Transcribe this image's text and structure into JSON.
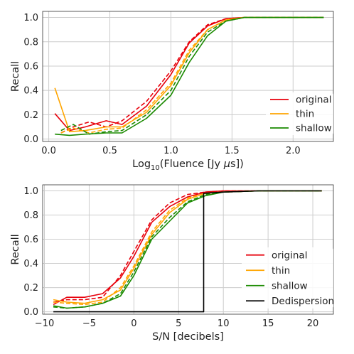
{
  "chart_data": [
    {
      "type": "line",
      "xlabel": "Log10(Fluence [Jy μs])",
      "xlabel_parts": {
        "pre": "Log",
        "sub": "10",
        "post": "(Fluence [Jy ",
        "mu": "μ",
        "post2": "s])"
      },
      "ylabel": "Recall",
      "xlim": [
        -0.05,
        2.33
      ],
      "ylim": [
        -0.02,
        1.05
      ],
      "xticks": [
        0.0,
        0.5,
        1.0,
        1.5,
        2.0
      ],
      "xtick_labels": [
        "0.0",
        "0.5",
        "1.0",
        "1.5",
        "2.0"
      ],
      "yticks": [
        0.0,
        0.2,
        0.4,
        0.6,
        0.8,
        1.0
      ],
      "ytick_labels": [
        "0.0",
        "0.2",
        "0.4",
        "0.6",
        "0.8",
        "1.0"
      ],
      "grid": true,
      "legend": {
        "position": "right",
        "entries": [
          "original",
          "thin",
          "shallow"
        ]
      },
      "series": [
        {
          "name": "original",
          "color": "#e8000b",
          "style": "solid",
          "x": [
            0.05,
            0.17,
            0.3,
            0.47,
            0.6,
            0.8,
            1.0,
            1.15,
            1.3,
            1.45,
            1.6,
            2.25
          ],
          "y": [
            0.21,
            0.07,
            0.1,
            0.15,
            0.12,
            0.27,
            0.53,
            0.79,
            0.93,
            0.99,
            1.0,
            1.0
          ]
        },
        {
          "name": "",
          "color": "#e8000b",
          "style": "dashed",
          "x": [
            0.1,
            0.2,
            0.33,
            0.47,
            0.6,
            0.8,
            1.0,
            1.15,
            1.3,
            1.45,
            1.6,
            2.25
          ],
          "y": [
            0.05,
            0.1,
            0.14,
            0.1,
            0.15,
            0.31,
            0.56,
            0.8,
            0.94,
            0.99,
            1.0,
            1.0
          ]
        },
        {
          "name": "thin",
          "color": "#ffa500",
          "style": "solid",
          "x": [
            0.05,
            0.17,
            0.3,
            0.47,
            0.6,
            0.8,
            1.0,
            1.15,
            1.3,
            1.45,
            1.6,
            2.25
          ],
          "y": [
            0.42,
            0.06,
            0.07,
            0.1,
            0.1,
            0.22,
            0.44,
            0.71,
            0.9,
            0.98,
            1.0,
            1.0
          ]
        },
        {
          "name": "",
          "color": "#ffa500",
          "style": "dashed",
          "x": [
            0.1,
            0.2,
            0.33,
            0.47,
            0.6,
            0.8,
            1.0,
            1.15,
            1.3,
            1.45,
            1.6,
            2.25
          ],
          "y": [
            0.05,
            0.09,
            0.05,
            0.08,
            0.09,
            0.24,
            0.46,
            0.73,
            0.9,
            0.98,
            1.0,
            1.0
          ]
        },
        {
          "name": "shallow",
          "color": "#1a8a00",
          "style": "solid",
          "x": [
            0.05,
            0.17,
            0.3,
            0.47,
            0.6,
            0.8,
            1.0,
            1.15,
            1.3,
            1.45,
            1.6,
            2.25
          ],
          "y": [
            0.04,
            0.03,
            0.04,
            0.05,
            0.05,
            0.17,
            0.36,
            0.63,
            0.85,
            0.97,
            1.0,
            1.0
          ]
        },
        {
          "name": "",
          "color": "#1a8a00",
          "style": "dashed",
          "x": [
            0.1,
            0.2,
            0.33,
            0.47,
            0.6,
            0.8,
            1.0,
            1.15,
            1.3,
            1.45,
            1.6,
            2.25
          ],
          "y": [
            0.07,
            0.12,
            0.04,
            0.06,
            0.07,
            0.2,
            0.4,
            0.68,
            0.88,
            0.97,
            1.0,
            1.0
          ]
        }
      ]
    },
    {
      "type": "line",
      "xlabel": "S/N [decibels]",
      "ylabel": "Recall",
      "xlim": [
        -10.2,
        22.3
      ],
      "ylim": [
        -0.02,
        1.05
      ],
      "xticks": [
        -10,
        -5,
        0,
        5,
        10,
        15,
        20
      ],
      "xtick_labels": [
        "−10",
        "−5",
        "0",
        "5",
        "10",
        "15",
        "20"
      ],
      "yticks": [
        0.0,
        0.2,
        0.4,
        0.6,
        0.8,
        1.0
      ],
      "ytick_labels": [
        "0.0",
        "0.2",
        "0.4",
        "0.6",
        "0.8",
        "1.0"
      ],
      "grid": true,
      "legend": {
        "position": "lower-right",
        "entries": [
          "original",
          "thin",
          "shallow",
          "Dedispersion"
        ]
      },
      "series": [
        {
          "name": "original",
          "color": "#e8000b",
          "style": "solid",
          "x": [
            -9,
            -7.5,
            -5.5,
            -3.5,
            -1.5,
            0,
            2,
            4,
            6,
            8,
            10,
            14,
            21
          ],
          "y": [
            0.06,
            0.12,
            0.12,
            0.15,
            0.28,
            0.46,
            0.74,
            0.87,
            0.95,
            0.99,
            1.0,
            1.0,
            1.0
          ]
        },
        {
          "name": "",
          "color": "#e8000b",
          "style": "dashed",
          "x": [
            -9,
            -7.5,
            -5.5,
            -3.5,
            -1.5,
            0,
            2,
            4,
            6,
            8,
            10,
            14,
            21
          ],
          "y": [
            0.08,
            0.1,
            0.1,
            0.12,
            0.3,
            0.5,
            0.76,
            0.9,
            0.97,
            0.99,
            1.0,
            1.0,
            1.0
          ]
        },
        {
          "name": "thin",
          "color": "#ffa500",
          "style": "solid",
          "x": [
            -9,
            -7.5,
            -5.5,
            -3.5,
            -1.5,
            0,
            2,
            4,
            6,
            8,
            10,
            14,
            21
          ],
          "y": [
            0.1,
            0.08,
            0.07,
            0.1,
            0.18,
            0.36,
            0.64,
            0.82,
            0.93,
            0.98,
            0.99,
            1.0,
            1.0
          ]
        },
        {
          "name": "",
          "color": "#ffa500",
          "style": "dashed",
          "x": [
            -9,
            -7.5,
            -5.5,
            -3.5,
            -1.5,
            0,
            2,
            4,
            6,
            8,
            10,
            14,
            21
          ],
          "y": [
            0.08,
            0.07,
            0.06,
            0.08,
            0.2,
            0.38,
            0.66,
            0.84,
            0.94,
            0.98,
            0.99,
            1.0,
            1.0
          ]
        },
        {
          "name": "shallow",
          "color": "#1a8a00",
          "style": "solid",
          "x": [
            -9,
            -7.5,
            -5.5,
            -3.5,
            -1.5,
            0,
            2,
            4,
            6,
            8,
            10,
            14,
            21
          ],
          "y": [
            0.05,
            0.03,
            0.04,
            0.07,
            0.13,
            0.3,
            0.6,
            0.75,
            0.9,
            0.96,
            0.99,
            1.0,
            1.0
          ]
        },
        {
          "name": "",
          "color": "#1a8a00",
          "style": "dashed",
          "x": [
            -9,
            -7.5,
            -5.5,
            -3.5,
            -1.5,
            0,
            2,
            4,
            6,
            8,
            10,
            14,
            21
          ],
          "y": [
            0.04,
            0.03,
            0.04,
            0.07,
            0.15,
            0.33,
            0.62,
            0.78,
            0.91,
            0.97,
            0.99,
            1.0,
            1.0
          ]
        },
        {
          "name": "Dedispersion",
          "color": "#000000",
          "style": "solid",
          "x": [
            -9,
            7.8,
            7.8,
            10,
            14,
            21
          ],
          "y": [
            0.0,
            0.0,
            0.98,
            0.99,
            1.0,
            1.0
          ]
        }
      ]
    }
  ]
}
